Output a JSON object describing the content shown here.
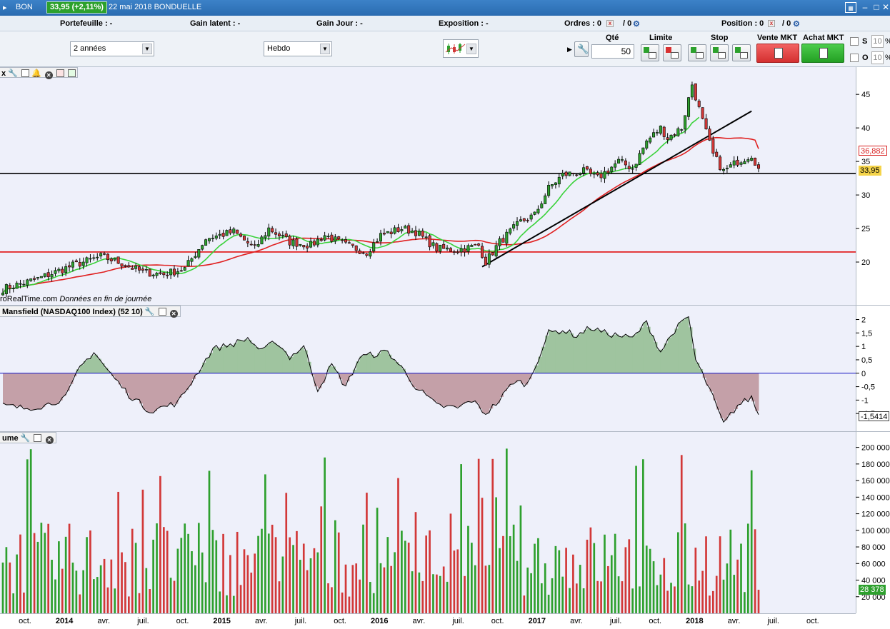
{
  "titlebar": {
    "symbol": "BON",
    "price_change": "33,95 (+2,11%)",
    "date_name": "22 mai 2018 BONDUELLE",
    "minimize": "–",
    "maximize": "□",
    "close": "✕"
  },
  "infobar": {
    "portefeuille": "Portefeuille : -",
    "gain_latent": "Gain latent : -",
    "gain_jour": "Gain Jour : -",
    "exposition": "Exposition : -",
    "ordres_label": "Ordres : 0",
    "ordres_sep": "/ 0",
    "position_label": "Position : 0",
    "position_sep": "/ 0"
  },
  "controls": {
    "period": "2 années",
    "timeframe": "Hebdo",
    "qte_title": "Qté",
    "qte_value": "50",
    "limite_title": "Limite",
    "stop_title": "Stop",
    "vente_title": "Vente MKT",
    "achat_title": "Achat MKT",
    "s_label": "S",
    "o_label": "O",
    "s_value": "10",
    "o_value": "10",
    "pct": "%"
  },
  "price_panel": {
    "source_note": "roRealTime.com",
    "source_note_italic": "Données en fin de journée",
    "tag_ma": "36,882",
    "tag_last": "33,95",
    "ticks": [
      "45",
      "40",
      "35",
      "30",
      "25",
      "20"
    ]
  },
  "rs_panel": {
    "title": "Mansfield (NASDAQ100 Index) (52 10)",
    "tag_last": "-1,5414",
    "ticks": [
      "2",
      "1,5",
      "1",
      "0,5",
      "0",
      "-0,5",
      "-1",
      "-1,5"
    ]
  },
  "volume_panel": {
    "title": "ume",
    "tag_last": "28 378",
    "ticks": [
      "200 000",
      "180 000",
      "160 000",
      "140 000",
      "120 000",
      "100 000",
      "80 000",
      "60 000",
      "40 000",
      "20 000"
    ]
  },
  "xaxis": [
    {
      "label": "oct.",
      "year": false
    },
    {
      "label": "2014",
      "year": true
    },
    {
      "label": "avr.",
      "year": false
    },
    {
      "label": "juil.",
      "year": false
    },
    {
      "label": "oct.",
      "year": false
    },
    {
      "label": "2015",
      "year": true
    },
    {
      "label": "avr.",
      "year": false
    },
    {
      "label": "juil.",
      "year": false
    },
    {
      "label": "oct.",
      "year": false
    },
    {
      "label": "2016",
      "year": true
    },
    {
      "label": "avr.",
      "year": false
    },
    {
      "label": "juil.",
      "year": false
    },
    {
      "label": "oct.",
      "year": false
    },
    {
      "label": "2017",
      "year": true
    },
    {
      "label": "avr.",
      "year": false
    },
    {
      "label": "juil.",
      "year": false
    },
    {
      "label": "oct.",
      "year": false
    },
    {
      "label": "2018",
      "year": true
    },
    {
      "label": "avr.",
      "year": false
    },
    {
      "label": "juil.",
      "year": false
    },
    {
      "label": "oct.",
      "year": false
    }
  ],
  "chart_data": {
    "type": "candlestick",
    "timeframe": "weekly",
    "y_range": [
      15,
      48
    ],
    "price_keypoints": [
      [
        0,
        16
      ],
      [
        10,
        17.5
      ],
      [
        20,
        19.5
      ],
      [
        28,
        20.8
      ],
      [
        32,
        20.2
      ],
      [
        40,
        18.5
      ],
      [
        46,
        18.2
      ],
      [
        52,
        19
      ],
      [
        58,
        23.5
      ],
      [
        66,
        24.5
      ],
      [
        72,
        22
      ],
      [
        76,
        25
      ],
      [
        82,
        23
      ],
      [
        88,
        22.5
      ],
      [
        92,
        24
      ],
      [
        98,
        22.5
      ],
      [
        104,
        21.5
      ],
      [
        108,
        24
      ],
      [
        114,
        25
      ],
      [
        118,
        24.5
      ],
      [
        124,
        22
      ],
      [
        130,
        21.8
      ],
      [
        136,
        22.5
      ],
      [
        138,
        20
      ],
      [
        142,
        23
      ],
      [
        148,
        26
      ],
      [
        152,
        27
      ],
      [
        156,
        31
      ],
      [
        160,
        33
      ],
      [
        166,
        33.5
      ],
      [
        170,
        32.5
      ],
      [
        176,
        35
      ],
      [
        180,
        34
      ],
      [
        184,
        38
      ],
      [
        188,
        40
      ],
      [
        190,
        38.5
      ],
      [
        194,
        40
      ],
      [
        197,
        46.5
      ],
      [
        200,
        41
      ],
      [
        203,
        36
      ],
      [
        206,
        33.5
      ],
      [
        210,
        35
      ],
      [
        214,
        36
      ],
      [
        216,
        34
      ]
    ],
    "moving_average_last": 36.882,
    "last_close": 33.95,
    "horizontal_lines": [
      {
        "value": 33.2,
        "color": "#000000"
      },
      {
        "value": 21.5,
        "color": "#e01010"
      }
    ],
    "rs_keypoints": [
      [
        0,
        -1.2
      ],
      [
        6,
        -1.3
      ],
      [
        12,
        -1.2
      ],
      [
        18,
        -0.9
      ],
      [
        22,
        0.2
      ],
      [
        26,
        0.8
      ],
      [
        30,
        0.1
      ],
      [
        36,
        -0.8
      ],
      [
        42,
        -1.4
      ],
      [
        50,
        -1.1
      ],
      [
        54,
        -0.3
      ],
      [
        60,
        0.9
      ],
      [
        66,
        1.1
      ],
      [
        70,
        1.3
      ],
      [
        74,
        0.8
      ],
      [
        78,
        1.2
      ],
      [
        82,
        0.6
      ],
      [
        86,
        1.0
      ],
      [
        90,
        -0.6
      ],
      [
        94,
        0.3
      ],
      [
        98,
        -0.5
      ],
      [
        102,
        0.6
      ],
      [
        106,
        0.7
      ],
      [
        110,
        0.8
      ],
      [
        114,
        0.2
      ],
      [
        118,
        -0.5
      ],
      [
        124,
        -1.2
      ],
      [
        130,
        -1.3
      ],
      [
        134,
        -1.0
      ],
      [
        138,
        -1.5
      ],
      [
        142,
        -1.0
      ],
      [
        146,
        -0.3
      ],
      [
        150,
        -0.4
      ],
      [
        156,
        1.5
      ],
      [
        160,
        1.6
      ],
      [
        164,
        1.4
      ],
      [
        168,
        1.7
      ],
      [
        172,
        1.5
      ],
      [
        176,
        1.4
      ],
      [
        180,
        1.3
      ],
      [
        184,
        1.9
      ],
      [
        188,
        0.8
      ],
      [
        192,
        1.6
      ],
      [
        196,
        2.1
      ],
      [
        198,
        0.5
      ],
      [
        202,
        -0.6
      ],
      [
        206,
        -1.9
      ],
      [
        210,
        -1.2
      ],
      [
        214,
        -0.9
      ],
      [
        216,
        -1.54
      ]
    ],
    "volume_range": [
      0,
      210000
    ],
    "last_volume": 28378,
    "colors": {
      "up": "#2ea02e",
      "down": "#d23838",
      "ma_red": "#e02020",
      "ma_green": "#3ad23a",
      "rs_pos": "#9fc49f",
      "rs_neg": "#c4a0a8"
    }
  }
}
